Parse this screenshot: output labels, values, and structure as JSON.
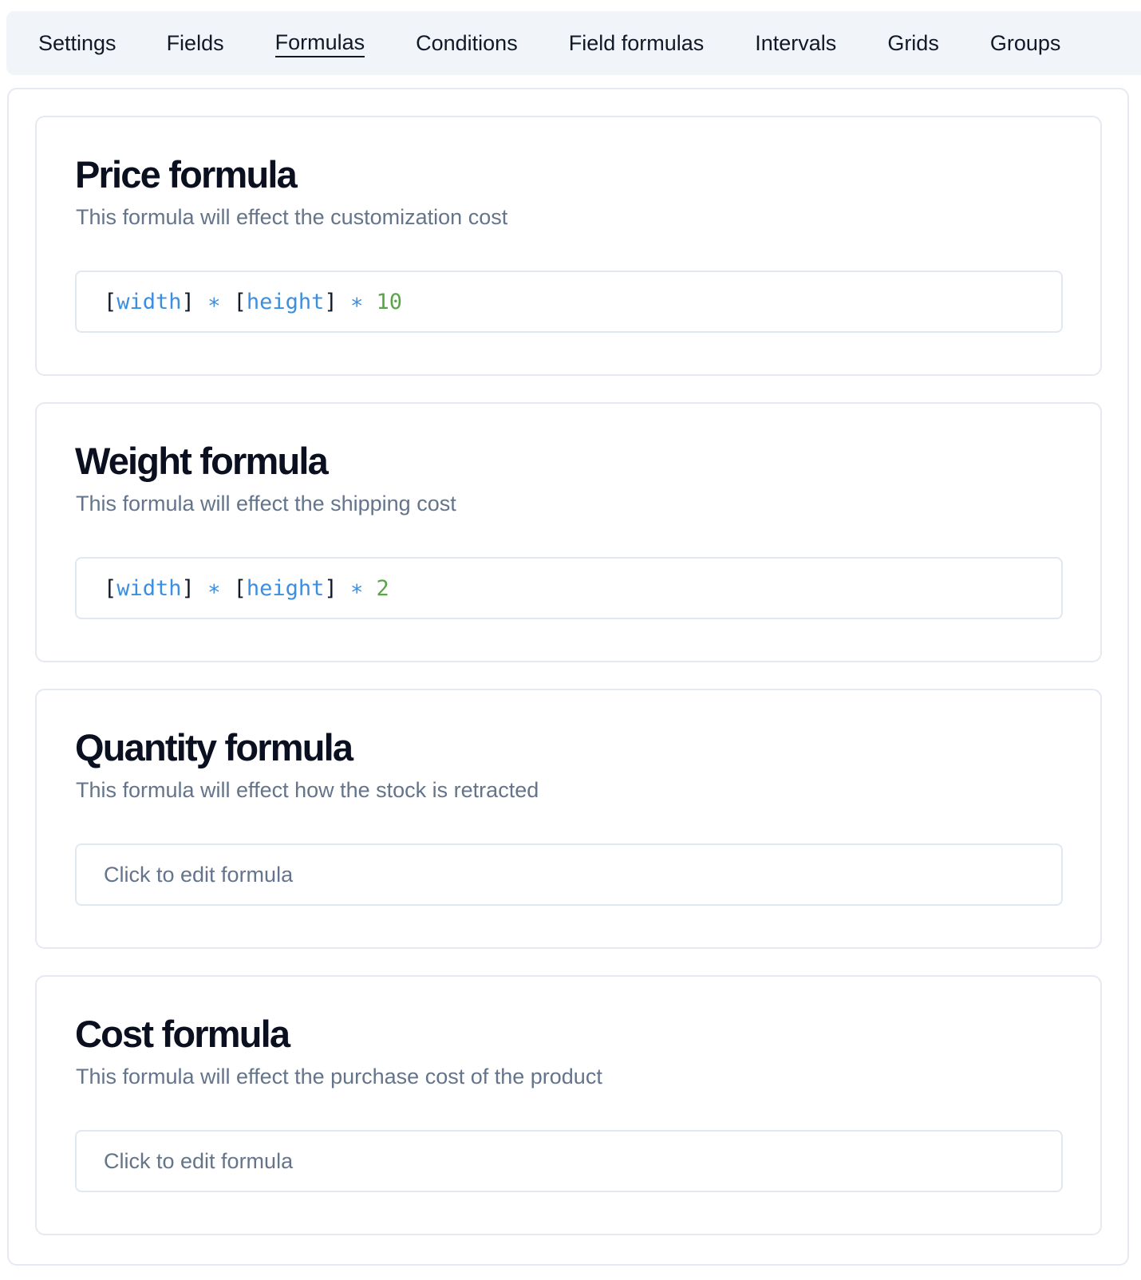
{
  "tabs": [
    {
      "label": "Settings"
    },
    {
      "label": "Fields"
    },
    {
      "label": "Formulas",
      "active": true
    },
    {
      "label": "Conditions"
    },
    {
      "label": "Field formulas"
    },
    {
      "label": "Intervals"
    },
    {
      "label": "Grids"
    },
    {
      "label": "Groups"
    }
  ],
  "cards": [
    {
      "title": "Price formula",
      "description": "This formula will effect the customization cost",
      "formula": {
        "open": "[",
        "var1": "width",
        "close": "]",
        "op1": "∗",
        "open2": "[",
        "var2": "height",
        "close2": "]",
        "op2": "∗",
        "num": "10"
      }
    },
    {
      "title": "Weight formula",
      "description": "This formula will effect the shipping cost",
      "formula": {
        "open": "[",
        "var1": "width",
        "close": "]",
        "op1": "∗",
        "open2": "[",
        "var2": "height",
        "close2": "]",
        "op2": "∗",
        "num": "2"
      }
    },
    {
      "title": "Quantity formula",
      "description": "This formula will effect how the stock is retracted",
      "placeholder": "Click to edit formula"
    },
    {
      "title": "Cost formula",
      "description": "This formula will effect the purchase cost of the product",
      "placeholder": "Click to edit formula"
    }
  ],
  "colors": {
    "variable": "#3b8ee0",
    "number": "#5aa54a",
    "tabbar_bg": "#f1f4f9",
    "muted": "#64748b"
  }
}
